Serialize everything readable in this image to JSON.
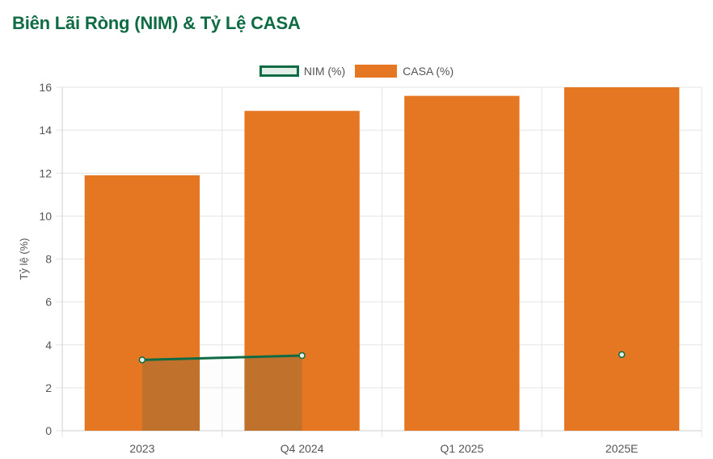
{
  "title": "Biên Lãi Ròng (NIM) & Tỷ Lệ CASA",
  "chart_data": {
    "type": "bar",
    "categories": [
      "2023",
      "Q4 2024",
      "Q1 2025",
      "2025E"
    ],
    "series": [
      {
        "name": "CASA (%)",
        "type": "bar",
        "values": [
          11.9,
          14.9,
          15.6,
          16.0
        ],
        "color": "#e67722"
      },
      {
        "name": "NIM (%)",
        "type": "line-area",
        "values": [
          3.3,
          3.5,
          null,
          3.55
        ],
        "color": "#0f6b44",
        "fill": "#e3eee8"
      }
    ],
    "ylabel": "Tỷ lệ (%)",
    "xlabel": "",
    "ylim": [
      0,
      16
    ],
    "yticks": [
      0,
      2,
      4,
      6,
      8,
      10,
      12,
      14,
      16
    ],
    "grid": true,
    "legend_position": "top-center"
  }
}
